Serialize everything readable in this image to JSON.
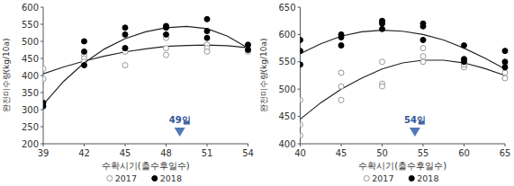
{
  "chart_data": [
    {
      "type": "scatter",
      "x_label": "수확시기(출수후일수)",
      "y_label": "완전미수량(kg/10a)",
      "xlim": [
        39,
        54
      ],
      "xticks": [
        39,
        42,
        45,
        48,
        51,
        54
      ],
      "ylim": [
        200,
        600
      ],
      "yticks": [
        200,
        250,
        300,
        350,
        400,
        450,
        500,
        550,
        600
      ],
      "grid": false,
      "legend": "bottom",
      "annotation": {
        "text": "49일",
        "x": 49
      },
      "series": [
        {
          "name": "2017",
          "color": "#999999",
          "marker": "open-circle",
          "x": [
            39,
            39,
            42,
            42,
            42,
            45,
            45,
            45,
            48,
            48,
            48,
            51,
            51,
            51,
            54,
            54
          ],
          "values": [
            420,
            390,
            460,
            450,
            440,
            480,
            470,
            430,
            510,
            480,
            460,
            490,
            480,
            470,
            480,
            470
          ],
          "trend": {
            "x": [
              39,
              40.5,
              42,
              43.5,
              45,
              46.5,
              48,
              49.5,
              51,
              52.5,
              54
            ],
            "values": [
              405,
              425,
              442,
              457,
              469,
              478,
              485,
              488,
              489,
              487,
              481
            ]
          }
        },
        {
          "name": "2018",
          "color": "#000000",
          "marker": "circle",
          "x": [
            39,
            39,
            42,
            42,
            42,
            45,
            45,
            45,
            48,
            48,
            48,
            51,
            51,
            51,
            54,
            54
          ],
          "values": [
            320,
            310,
            500,
            470,
            430,
            540,
            520,
            480,
            545,
            520,
            540,
            565,
            530,
            510,
            490,
            475
          ],
          "trend": {
            "x": [
              39,
              40.5,
              42,
              43.5,
              45,
              46.5,
              48,
              49.5,
              51,
              52.5,
              54
            ],
            "values": [
              315,
              383,
              437,
              478,
              508,
              528,
              540,
              544,
              537,
              515,
              480
            ]
          }
        }
      ]
    },
    {
      "type": "scatter",
      "x_label": "수확시기(출수후일수)",
      "y_label": "완전미수량(kg/10a)",
      "xlim": [
        40,
        65
      ],
      "xticks": [
        40,
        45,
        50,
        55,
        60,
        65
      ],
      "ylim": [
        400,
        650
      ],
      "yticks": [
        400,
        450,
        500,
        550,
        600,
        650
      ],
      "grid": false,
      "legend": "bottom",
      "annotation": {
        "text": "54일",
        "x": 54
      },
      "series": [
        {
          "name": "2017",
          "color": "#999999",
          "marker": "open-circle",
          "x": [
            40,
            40,
            40,
            45,
            45,
            45,
            50,
            50,
            50,
            55,
            55,
            55,
            60,
            60,
            60,
            65,
            65,
            65
          ],
          "values": [
            480,
            435,
            415,
            530,
            505,
            480,
            550,
            510,
            505,
            575,
            560,
            550,
            555,
            540,
            545,
            545,
            530,
            520
          ],
          "trend": {
            "x": [
              40,
              42.5,
              45,
              47.5,
              50,
              52.5,
              55,
              57.5,
              60,
              62.5,
              65
            ],
            "values": [
              445,
              475,
              500,
              520,
              537,
              548,
              553,
              553,
              548,
              538,
              525
            ]
          }
        },
        {
          "name": "2018",
          "color": "#000000",
          "marker": "circle",
          "x": [
            40,
            40,
            40,
            45,
            45,
            45,
            50,
            50,
            50,
            55,
            55,
            55,
            60,
            60,
            60,
            65,
            65,
            65
          ],
          "values": [
            590,
            570,
            545,
            600,
            595,
            580,
            625,
            620,
            610,
            620,
            615,
            590,
            580,
            555,
            550,
            570,
            550,
            540
          ],
          "trend": {
            "x": [
              40,
              42.5,
              45,
              47.5,
              50,
              52.5,
              55,
              57.5,
              60,
              62.5,
              65
            ],
            "values": [
              565,
              583,
              597,
              605,
              608,
              606,
              600,
              590,
              575,
              557,
              537
            ]
          }
        }
      ]
    }
  ]
}
